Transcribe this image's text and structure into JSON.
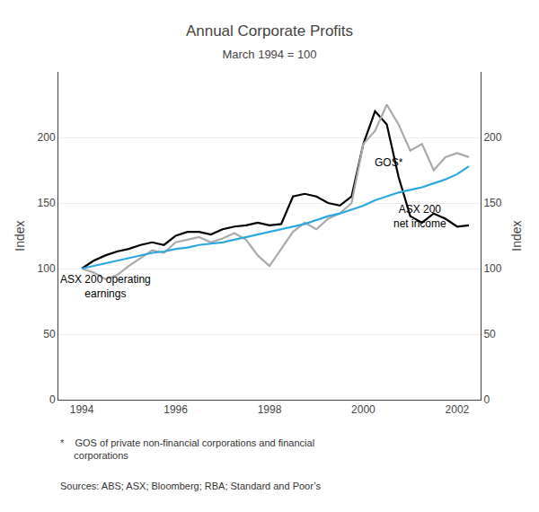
{
  "chart_data": {
    "type": "line",
    "title": "Annual Corporate Profits",
    "subtitle": "March 1994 = 100",
    "ylabel": "Index",
    "y2label": "Index",
    "x": [
      1994.0,
      1994.25,
      1994.5,
      1994.75,
      1995.0,
      1995.25,
      1995.5,
      1995.75,
      1996.0,
      1996.25,
      1996.5,
      1996.75,
      1997.0,
      1997.25,
      1997.5,
      1997.75,
      1998.0,
      1998.25,
      1998.5,
      1998.75,
      1999.0,
      1999.25,
      1999.5,
      1999.75,
      2000.0,
      2000.25,
      2000.5,
      2000.75,
      2001.0,
      2001.25,
      2001.5,
      2001.75,
      2002.0,
      2002.25
    ],
    "series": [
      {
        "name": "ASX 200 operating\nearnings",
        "color": "#000000",
        "values": [
          100,
          106,
          110,
          113,
          115,
          118,
          120,
          118,
          125,
          128,
          128,
          126,
          130,
          132,
          133,
          135,
          133,
          134,
          155,
          157,
          155,
          150,
          148,
          155,
          195,
          220,
          210,
          170,
          140,
          135,
          142,
          138,
          132,
          133
        ]
      },
      {
        "name": "GOS*",
        "color": "#aaaaaa",
        "values": [
          100,
          97,
          92,
          95,
          102,
          108,
          114,
          112,
          120,
          122,
          124,
          120,
          123,
          127,
          122,
          110,
          102,
          115,
          128,
          135,
          130,
          138,
          142,
          150,
          195,
          205,
          225,
          210,
          190,
          195,
          175,
          185,
          188,
          185
        ]
      },
      {
        "name": "ASX 200\nnet income",
        "color": "#29a8e0",
        "values": [
          100,
          102,
          104,
          106,
          108,
          110,
          112,
          113,
          115,
          116,
          118,
          119,
          120,
          122,
          124,
          126,
          128,
          130,
          132,
          134,
          137,
          140,
          142,
          145,
          148,
          152,
          155,
          158,
          160,
          162,
          165,
          168,
          172,
          178
        ]
      }
    ],
    "xlim": [
      1993.5,
      2002.5
    ],
    "xticks": [
      1994,
      1996,
      1998,
      2000,
      2002
    ],
    "ylim": [
      0,
      250
    ],
    "yticks": [
      0,
      50,
      100,
      150,
      200
    ],
    "y2lim": [
      0,
      250
    ],
    "y2ticks": [
      0,
      50,
      100,
      150,
      200
    ],
    "grid": true,
    "annotations": [
      {
        "text": "ASX 200 operating\nearnings",
        "x": 1994.5,
        "y": 75
      },
      {
        "text": "GOS*",
        "x": 2000.55,
        "y": 175
      },
      {
        "text": "ASX 200\nnet income",
        "x": 2001.2,
        "y": 128
      }
    ],
    "footnotes": [
      "*    GOS of private non-financial corporations and financial\n     corporations",
      "Sources: ABS; ASX; Bloomberg; RBA; Standard and Poor’s"
    ]
  }
}
